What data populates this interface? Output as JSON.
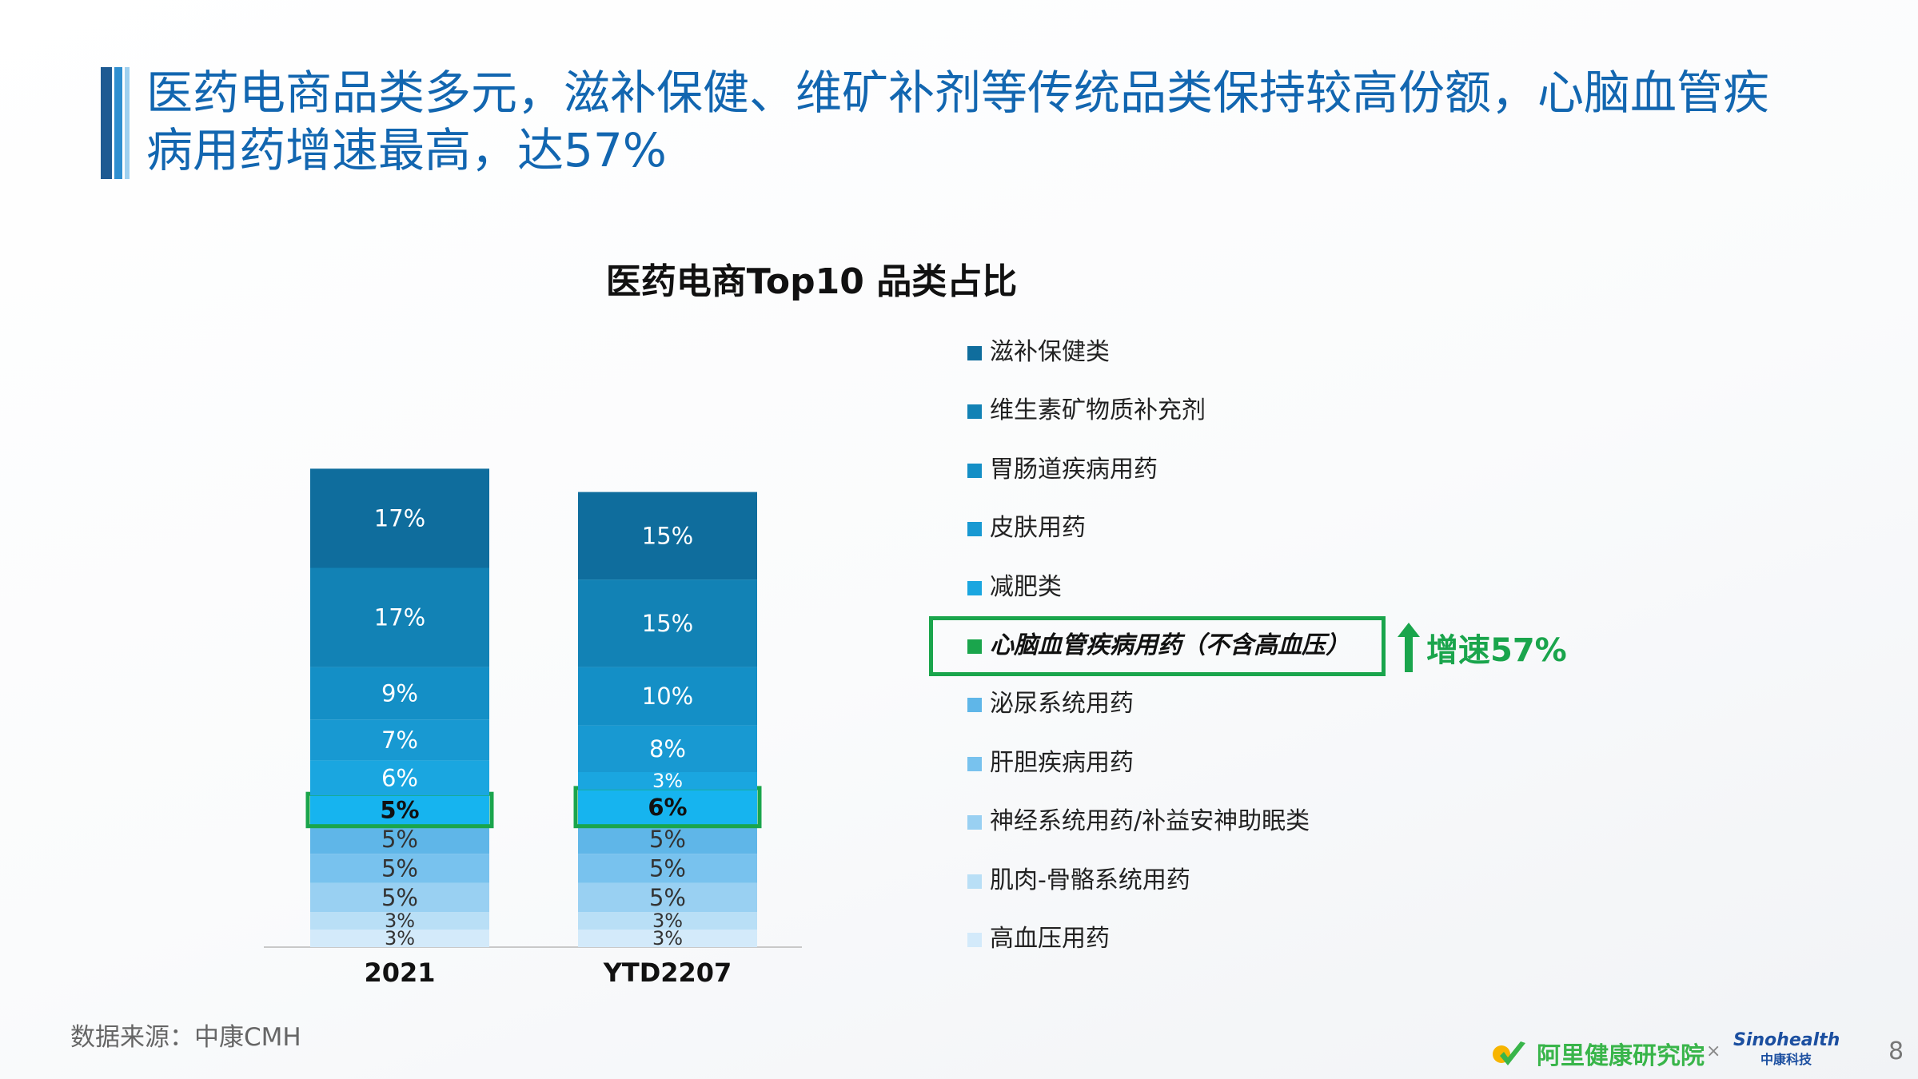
{
  "title": "医药电商品类多元，滋补保健、维矿补剂等传统品类保持较高份额，心脑血管疾病用药增速最高，达57%",
  "source": "数据来源：中康CMH",
  "page_number": "8",
  "growth_label": "增速57%",
  "footer": {
    "brand": "阿里健康研究院",
    "separator": "×",
    "partner": "Sinohealth",
    "partner_sub": "中康科技"
  },
  "colors": {
    "title": "#1266b0",
    "highlight": "#1aa54c"
  },
  "chart_data": {
    "type": "bar",
    "stacked": true,
    "title": "医药电商Top10 品类占比",
    "categories": [
      "2021",
      "YTD2207"
    ],
    "highlight_series": "心脑血管疾病用药（不含高血压）",
    "series": [
      {
        "name": "滋补保健类",
        "values": [
          17,
          15
        ],
        "color": "#0f6d9d"
      },
      {
        "name": "维生素矿物质补充剂",
        "values": [
          17,
          15
        ],
        "color": "#1282b5"
      },
      {
        "name": "胃肠道疾病用药",
        "values": [
          9,
          10
        ],
        "color": "#148fc6"
      },
      {
        "name": "皮肤用药",
        "values": [
          7,
          8
        ],
        "color": "#1899d2"
      },
      {
        "name": "减肥类",
        "values": [
          6,
          3
        ],
        "color": "#1aa6e0"
      },
      {
        "name": "心脑血管疾病用药（不含高血压）",
        "values": [
          5,
          6
        ],
        "color": "#16b4ef"
      },
      {
        "name": "泌尿系统用药",
        "values": [
          5,
          5
        ],
        "color": "#5fb6e8"
      },
      {
        "name": "肝胆疾病用药",
        "values": [
          5,
          5
        ],
        "color": "#78c2ee"
      },
      {
        "name": "神经系统用药/补益安神助眠类",
        "values": [
          5,
          5
        ],
        "color": "#99d0f2"
      },
      {
        "name": "肌肉-骨骼系统用药",
        "values": [
          3,
          3
        ],
        "color": "#b9dff6"
      },
      {
        "name": "高血压用药",
        "values": [
          3,
          3
        ],
        "color": "#d3eafa"
      }
    ],
    "value_labels": [
      [
        "17%",
        "17%",
        "9%",
        "7%",
        "6%",
        "5%",
        "5%",
        "5%",
        "5%",
        "3%",
        "3%"
      ],
      [
        "15%",
        "15%",
        "10%",
        "8%",
        "3%",
        "6%",
        "5%",
        "5%",
        "5%",
        "3%",
        "3%"
      ]
    ],
    "legend_position": "right"
  }
}
